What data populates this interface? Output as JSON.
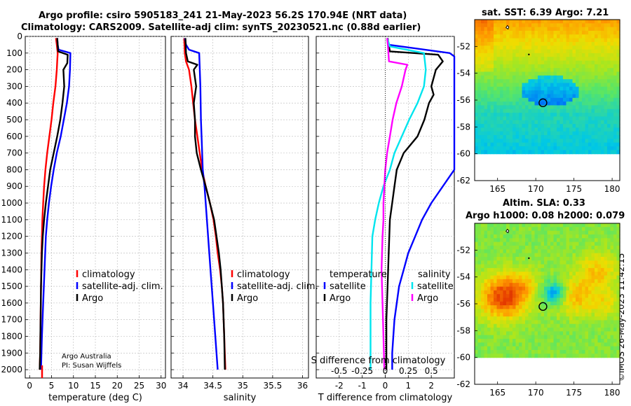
{
  "header": {
    "title_line1": "Argo profile: csiro 5905183_241 21-May-2023 56.2S 170.94E (NRT data)",
    "title_line2": "Climatology: CARS2009. Satellite-adj clim: synTS_20230521.nc (0.88d earlier)"
  },
  "attribution": {
    "line1": "Argo Australia",
    "line2": "PI: Susan Wijffels",
    "imos": "©IMOS 26-May-2023 11:42:15"
  },
  "colors": {
    "climatology": "#ff0000",
    "satellite": "#0000ff",
    "argo": "#000000",
    "temp_satellite": "#0000ff",
    "sal_satellite": "#00e5ee",
    "sal_argo": "#ff00ff"
  },
  "chart_data": [
    {
      "type": "line",
      "id": "temperature",
      "xlabel": "temperature (deg C)",
      "ylabel": "",
      "xlim": [
        -1,
        31
      ],
      "ylim": [
        2050,
        0
      ],
      "xticks": [
        0,
        5,
        10,
        15,
        20,
        25,
        30
      ],
      "yticks": [
        0,
        100,
        200,
        300,
        400,
        500,
        600,
        700,
        800,
        900,
        1000,
        1100,
        1200,
        1300,
        1400,
        1500,
        1600,
        1700,
        1800,
        1900,
        2000
      ],
      "legend": [
        "climatology",
        "satellite-adj. clim.",
        "Argo"
      ],
      "series": [
        {
          "name": "climatology",
          "color": "#ff0000",
          "points": [
            [
              6.0,
              10
            ],
            [
              6.2,
              50
            ],
            [
              6.4,
              100
            ],
            [
              6.3,
              150
            ],
            [
              6.2,
              200
            ],
            [
              5.9,
              300
            ],
            [
              5.4,
              400
            ],
            [
              5.0,
              500
            ],
            [
              4.5,
              600
            ],
            [
              4.0,
              700
            ],
            [
              3.6,
              800
            ],
            [
              3.3,
              900
            ],
            [
              3.1,
              1000
            ],
            [
              2.9,
              1100
            ],
            [
              2.8,
              1200
            ],
            [
              2.7,
              1300
            ],
            [
              2.6,
              1500
            ],
            [
              2.5,
              1700
            ],
            [
              2.4,
              1900
            ],
            [
              2.3,
              2000
            ]
          ]
        },
        {
          "name": "satellite-adj. clim.",
          "color": "#0000ff",
          "points": [
            [
              6.3,
              10
            ],
            [
              6.4,
              50
            ],
            [
              6.6,
              80
            ],
            [
              9.3,
              100
            ],
            [
              9.2,
              200
            ],
            [
              9.0,
              300
            ],
            [
              8.5,
              400
            ],
            [
              7.8,
              500
            ],
            [
              7.1,
              600
            ],
            [
              6.2,
              700
            ],
            [
              5.5,
              800
            ],
            [
              4.9,
              900
            ],
            [
              4.4,
              1000
            ],
            [
              4.0,
              1100
            ],
            [
              3.7,
              1200
            ],
            [
              3.4,
              1400
            ],
            [
              3.1,
              1600
            ],
            [
              2.8,
              1800
            ],
            [
              2.6,
              2000
            ]
          ]
        },
        {
          "name": "Argo",
          "color": "#000000",
          "points": [
            [
              6.3,
              10
            ],
            [
              6.4,
              50
            ],
            [
              6.5,
              90
            ],
            [
              8.7,
              110
            ],
            [
              8.6,
              160
            ],
            [
              7.7,
              200
            ],
            [
              7.9,
              300
            ],
            [
              7.5,
              400
            ],
            [
              7.0,
              500
            ],
            [
              6.3,
              600
            ],
            [
              5.5,
              700
            ],
            [
              4.7,
              800
            ],
            [
              4.2,
              900
            ],
            [
              3.7,
              1000
            ],
            [
              3.3,
              1100
            ],
            [
              3.0,
              1200
            ],
            [
              2.8,
              1300
            ],
            [
              2.6,
              1500
            ],
            [
              2.5,
              1700
            ],
            [
              2.4,
              1900
            ],
            [
              2.3,
              2000
            ]
          ]
        }
      ]
    },
    {
      "type": "line",
      "id": "salinity",
      "xlabel": "salinity",
      "xlim": [
        33.8,
        36.1
      ],
      "ylim": [
        2050,
        0
      ],
      "xticks": [
        34,
        34.5,
        35,
        35.5,
        36
      ],
      "legend": [
        "climatology",
        "satellite-adj. clim.",
        "Argo"
      ],
      "series": [
        {
          "name": "climatology",
          "color": "#ff0000",
          "points": [
            [
              34.02,
              10
            ],
            [
              34.03,
              100
            ],
            [
              34.05,
              150
            ],
            [
              34.1,
              200
            ],
            [
              34.14,
              300
            ],
            [
              34.17,
              400
            ],
            [
              34.2,
              500
            ],
            [
              34.24,
              600
            ],
            [
              34.28,
              700
            ],
            [
              34.32,
              800
            ],
            [
              34.38,
              900
            ],
            [
              34.45,
              1000
            ],
            [
              34.51,
              1100
            ],
            [
              34.55,
              1200
            ],
            [
              34.58,
              1300
            ],
            [
              34.62,
              1400
            ],
            [
              34.65,
              1500
            ],
            [
              34.67,
              1600
            ],
            [
              34.69,
              1800
            ],
            [
              34.71,
              2000
            ]
          ]
        },
        {
          "name": "satellite-adj. clim.",
          "color": "#0000ff",
          "points": [
            [
              34.03,
              10
            ],
            [
              34.05,
              50
            ],
            [
              34.1,
              80
            ],
            [
              34.27,
              100
            ],
            [
              34.29,
              300
            ],
            [
              34.3,
              500
            ],
            [
              34.31,
              600
            ],
            [
              34.33,
              800
            ],
            [
              34.36,
              900
            ],
            [
              34.38,
              1000
            ],
            [
              34.42,
              1200
            ],
            [
              34.46,
              1400
            ],
            [
              34.5,
              1600
            ],
            [
              34.54,
              1800
            ],
            [
              34.58,
              2000
            ]
          ]
        },
        {
          "name": "Argo",
          "color": "#000000",
          "points": [
            [
              34.04,
              10
            ],
            [
              34.05,
              100
            ],
            [
              34.08,
              150
            ],
            [
              34.24,
              170
            ],
            [
              34.18,
              200
            ],
            [
              34.22,
              300
            ],
            [
              34.18,
              400
            ],
            [
              34.2,
              500
            ],
            [
              34.2,
              600
            ],
            [
              34.23,
              700
            ],
            [
              34.3,
              800
            ],
            [
              34.38,
              900
            ],
            [
              34.45,
              1000
            ],
            [
              34.52,
              1100
            ],
            [
              34.56,
              1200
            ],
            [
              34.6,
              1300
            ],
            [
              34.63,
              1400
            ],
            [
              34.65,
              1500
            ],
            [
              34.67,
              1600
            ],
            [
              34.69,
              1800
            ],
            [
              34.7,
              2000
            ]
          ]
        }
      ]
    },
    {
      "type": "line",
      "id": "difference",
      "xlabel": "T difference from climatology",
      "xlabel_top": "S difference from climatology",
      "xlim": [
        -3,
        3
      ],
      "ylim": [
        2050,
        0
      ],
      "xticks": [
        -2,
        -1,
        0,
        1,
        2
      ],
      "xticks_top": [
        -0.5,
        -0.25,
        0,
        0.25,
        0.5
      ],
      "xtick_labels_top": [
        "-0.5",
        "-0.25",
        "0",
        "0.25",
        "0.5"
      ],
      "legend_temperature_title": "temperature",
      "legend_salinity_title": "salinity",
      "legend_temperature": [
        "satellite",
        "Argo"
      ],
      "legend_salinity": [
        "satellite",
        "Argo"
      ],
      "series": [
        {
          "name": "temperature satellite",
          "color": "#0000ff",
          "points": [
            [
              0.1,
              10
            ],
            [
              0.15,
              50
            ],
            [
              2.8,
              100
            ],
            [
              3.0,
              120
            ],
            [
              3.0,
              800
            ],
            [
              2.5,
              900
            ],
            [
              2.0,
              1000
            ],
            [
              1.6,
              1100
            ],
            [
              1.3,
              1200
            ],
            [
              1.0,
              1300
            ],
            [
              0.8,
              1400
            ],
            [
              0.6,
              1500
            ],
            [
              0.5,
              1600
            ],
            [
              0.4,
              1700
            ],
            [
              0.35,
              1800
            ],
            [
              0.3,
              1900
            ],
            [
              0.3,
              2000
            ]
          ]
        },
        {
          "name": "temperature Argo",
          "color": "#000000",
          "points": [
            [
              0.1,
              10
            ],
            [
              0.2,
              90
            ],
            [
              2.3,
              110
            ],
            [
              2.5,
              150
            ],
            [
              2.2,
              200
            ],
            [
              2.0,
              300
            ],
            [
              2.1,
              350
            ],
            [
              1.9,
              400
            ],
            [
              1.7,
              500
            ],
            [
              1.4,
              600
            ],
            [
              0.8,
              700
            ],
            [
              0.5,
              800
            ],
            [
              0.4,
              900
            ],
            [
              0.3,
              1000
            ],
            [
              0.2,
              1100
            ],
            [
              0.15,
              1300
            ],
            [
              0.1,
              1500
            ],
            [
              0.05,
              1700
            ],
            [
              0.05,
              2000
            ]
          ]
        },
        {
          "name": "salinity satellite",
          "color": "#00e5ee",
          "points": [
            [
              0.02,
              10
            ],
            [
              0.05,
              60
            ],
            [
              0.42,
              100
            ],
            [
              0.44,
              200
            ],
            [
              0.42,
              300
            ],
            [
              0.35,
              400
            ],
            [
              0.26,
              500
            ],
            [
              0.18,
              600
            ],
            [
              0.1,
              700
            ],
            [
              0.05,
              800
            ],
            [
              -0.02,
              900
            ],
            [
              -0.07,
              1000
            ],
            [
              -0.11,
              1100
            ],
            [
              -0.14,
              1200
            ],
            [
              -0.15,
              1400
            ],
            [
              -0.16,
              1600
            ],
            [
              -0.16,
              1800
            ],
            [
              -0.16,
              2000
            ]
          ]
        },
        {
          "name": "salinity Argo",
          "color": "#ff00ff",
          "points": [
            [
              0.02,
              10
            ],
            [
              0.03,
              60
            ],
            [
              0.04,
              150
            ],
            [
              0.24,
              170
            ],
            [
              0.22,
              200
            ],
            [
              0.18,
              300
            ],
            [
              0.12,
              400
            ],
            [
              0.08,
              500
            ],
            [
              0.05,
              600
            ],
            [
              0.02,
              700
            ],
            [
              0.0,
              800
            ],
            [
              -0.02,
              1000
            ],
            [
              -0.02,
              1100
            ],
            [
              -0.03,
              1200
            ],
            [
              -0.04,
              1400
            ],
            [
              -0.03,
              1600
            ],
            [
              -0.02,
              1800
            ],
            [
              -0.01,
              2000
            ]
          ]
        }
      ]
    },
    {
      "type": "heatmap",
      "id": "sst_map",
      "title": "sat. SST: 6.39 Argo: 7.21",
      "xlim": [
        162,
        181
      ],
      "ylim": [
        -62,
        -50
      ],
      "xticks": [
        165,
        170,
        175,
        180
      ],
      "yticks": [
        -52,
        -54,
        -56,
        -58,
        -60,
        -62
      ],
      "float_position": [
        170.94,
        -56.2
      ],
      "data_ylim": [
        -60,
        -50
      ]
    },
    {
      "type": "heatmap",
      "id": "sla_map",
      "title_line1": "Altim. SLA: 0.33",
      "title_line2": "Argo h1000: 0.08 h2000: 0.079",
      "xlim": [
        162,
        181
      ],
      "ylim": [
        -62,
        -50
      ],
      "xticks": [
        165,
        170,
        175,
        180
      ],
      "yticks": [
        -52,
        -54,
        -56,
        -58,
        -60,
        -62
      ],
      "float_position": [
        170.94,
        -56.2
      ],
      "data_ylim": [
        -60,
        -50
      ]
    }
  ]
}
